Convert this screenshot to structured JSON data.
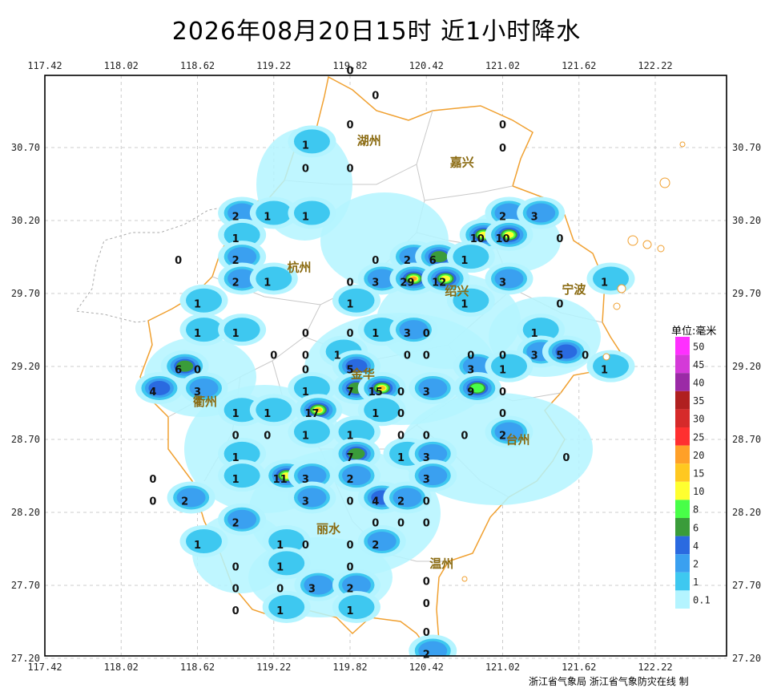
{
  "title": "2026年08月20日15时  近1小时降水",
  "axes": {
    "lon_ticks": [
      "117.42",
      "118.02",
      "118.62",
      "119.22",
      "119.82",
      "120.42",
      "121.02",
      "121.62",
      "122.22"
    ],
    "lat_ticks": [
      "30.70",
      "30.20",
      "29.70",
      "29.20",
      "28.70",
      "28.20",
      "27.70",
      "27.20"
    ]
  },
  "cities": [
    {
      "name": "湖州",
      "lon": 119.97,
      "lat": 30.72
    },
    {
      "name": "嘉兴",
      "lon": 120.7,
      "lat": 30.57
    },
    {
      "name": "杭州",
      "lon": 119.42,
      "lat": 29.85
    },
    {
      "name": "绍兴",
      "lon": 120.66,
      "lat": 29.69
    },
    {
      "name": "宁波",
      "lon": 121.58,
      "lat": 29.7
    },
    {
      "name": "衢州",
      "lon": 118.68,
      "lat": 28.93
    },
    {
      "name": "金华",
      "lon": 119.92,
      "lat": 29.12
    },
    {
      "name": "台州",
      "lon": 121.14,
      "lat": 28.67
    },
    {
      "name": "丽水",
      "lon": 119.65,
      "lat": 28.06
    },
    {
      "name": "温州",
      "lon": 120.54,
      "lat": 27.82
    }
  ],
  "stations": [
    {
      "v": "0",
      "lon": 119.82,
      "lat": 31.23
    },
    {
      "v": "0",
      "lon": 120.02,
      "lat": 31.06
    },
    {
      "v": "0",
      "lon": 119.82,
      "lat": 30.86
    },
    {
      "v": "0",
      "lon": 121.02,
      "lat": 30.86
    },
    {
      "v": "1",
      "lon": 119.47,
      "lat": 30.72
    },
    {
      "v": "0",
      "lon": 121.02,
      "lat": 30.7
    },
    {
      "v": "0",
      "lon": 119.47,
      "lat": 30.56
    },
    {
      "v": "0",
      "lon": 119.82,
      "lat": 30.56
    },
    {
      "v": "2",
      "lon": 118.92,
      "lat": 30.23
    },
    {
      "v": "1",
      "lon": 119.17,
      "lat": 30.23
    },
    {
      "v": "1",
      "lon": 119.47,
      "lat": 30.23
    },
    {
      "v": "2",
      "lon": 121.02,
      "lat": 30.23
    },
    {
      "v": "3",
      "lon": 121.27,
      "lat": 30.23
    },
    {
      "v": "1",
      "lon": 118.92,
      "lat": 30.08
    },
    {
      "v": "10",
      "lon": 120.82,
      "lat": 30.08
    },
    {
      "v": "10",
      "lon": 121.02,
      "lat": 30.08
    },
    {
      "v": "0",
      "lon": 121.47,
      "lat": 30.08
    },
    {
      "v": "0",
      "lon": 118.47,
      "lat": 29.93
    },
    {
      "v": "2",
      "lon": 118.92,
      "lat": 29.93
    },
    {
      "v": "0",
      "lon": 120.02,
      "lat": 29.93
    },
    {
      "v": "2",
      "lon": 120.27,
      "lat": 29.93
    },
    {
      "v": "6",
      "lon": 120.47,
      "lat": 29.93
    },
    {
      "v": "1",
      "lon": 120.72,
      "lat": 29.93
    },
    {
      "v": "2",
      "lon": 118.92,
      "lat": 29.78
    },
    {
      "v": "1",
      "lon": 119.17,
      "lat": 29.78
    },
    {
      "v": "0",
      "lon": 119.82,
      "lat": 29.78
    },
    {
      "v": "3",
      "lon": 120.02,
      "lat": 29.78
    },
    {
      "v": "29",
      "lon": 120.27,
      "lat": 29.78
    },
    {
      "v": "12",
      "lon": 120.52,
      "lat": 29.78
    },
    {
      "v": "3",
      "lon": 121.02,
      "lat": 29.78
    },
    {
      "v": "1",
      "lon": 121.82,
      "lat": 29.78
    },
    {
      "v": "1",
      "lon": 118.62,
      "lat": 29.63
    },
    {
      "v": "1",
      "lon": 119.82,
      "lat": 29.63
    },
    {
      "v": "1",
      "lon": 120.72,
      "lat": 29.63
    },
    {
      "v": "0",
      "lon": 121.47,
      "lat": 29.63
    },
    {
      "v": "1",
      "lon": 118.62,
      "lat": 29.43
    },
    {
      "v": "1",
      "lon": 118.92,
      "lat": 29.43
    },
    {
      "v": "0",
      "lon": 119.47,
      "lat": 29.43
    },
    {
      "v": "0",
      "lon": 119.82,
      "lat": 29.43
    },
    {
      "v": "1",
      "lon": 120.02,
      "lat": 29.43
    },
    {
      "v": "3",
      "lon": 120.27,
      "lat": 29.43
    },
    {
      "v": "0",
      "lon": 120.42,
      "lat": 29.43
    },
    {
      "v": "1",
      "lon": 121.27,
      "lat": 29.43
    },
    {
      "v": "0",
      "lon": 119.22,
      "lat": 29.28
    },
    {
      "v": "0",
      "lon": 119.47,
      "lat": 29.28
    },
    {
      "v": "1",
      "lon": 119.72,
      "lat": 29.28
    },
    {
      "v": "0",
      "lon": 120.27,
      "lat": 29.28
    },
    {
      "v": "0",
      "lon": 120.42,
      "lat": 29.28
    },
    {
      "v": "0",
      "lon": 120.77,
      "lat": 29.28
    },
    {
      "v": "0",
      "lon": 121.02,
      "lat": 29.28
    },
    {
      "v": "3",
      "lon": 121.27,
      "lat": 29.28
    },
    {
      "v": "5",
      "lon": 121.47,
      "lat": 29.28
    },
    {
      "v": "0",
      "lon": 121.67,
      "lat": 29.28
    },
    {
      "v": "6",
      "lon": 118.47,
      "lat": 29.18
    },
    {
      "v": "0",
      "lon": 118.62,
      "lat": 29.18
    },
    {
      "v": "0",
      "lon": 119.47,
      "lat": 29.18
    },
    {
      "v": "5",
      "lon": 119.82,
      "lat": 29.18
    },
    {
      "v": "3",
      "lon": 120.77,
      "lat": 29.18
    },
    {
      "v": "1",
      "lon": 121.02,
      "lat": 29.18
    },
    {
      "v": "1",
      "lon": 121.82,
      "lat": 29.18
    },
    {
      "v": "4",
      "lon": 118.27,
      "lat": 29.03
    },
    {
      "v": "3",
      "lon": 118.62,
      "lat": 29.03
    },
    {
      "v": "1",
      "lon": 119.47,
      "lat": 29.03
    },
    {
      "v": "7",
      "lon": 119.82,
      "lat": 29.03
    },
    {
      "v": "15",
      "lon": 120.02,
      "lat": 29.03
    },
    {
      "v": "0",
      "lon": 120.22,
      "lat": 29.03
    },
    {
      "v": "3",
      "lon": 120.42,
      "lat": 29.03
    },
    {
      "v": "9",
      "lon": 120.77,
      "lat": 29.03
    },
    {
      "v": "0",
      "lon": 121.02,
      "lat": 29.03
    },
    {
      "v": "1",
      "lon": 118.92,
      "lat": 28.88
    },
    {
      "v": "1",
      "lon": 119.17,
      "lat": 28.88
    },
    {
      "v": "17",
      "lon": 119.52,
      "lat": 28.88
    },
    {
      "v": "1",
      "lon": 120.02,
      "lat": 28.88
    },
    {
      "v": "0",
      "lon": 120.22,
      "lat": 28.88
    },
    {
      "v": "0",
      "lon": 121.02,
      "lat": 28.88
    },
    {
      "v": "0",
      "lon": 118.92,
      "lat": 28.73
    },
    {
      "v": "0",
      "lon": 119.17,
      "lat": 28.73
    },
    {
      "v": "1",
      "lon": 119.47,
      "lat": 28.73
    },
    {
      "v": "1",
      "lon": 119.82,
      "lat": 28.73
    },
    {
      "v": "0",
      "lon": 120.22,
      "lat": 28.73
    },
    {
      "v": "0",
      "lon": 120.42,
      "lat": 28.73
    },
    {
      "v": "0",
      "lon": 120.72,
      "lat": 28.73
    },
    {
      "v": "2",
      "lon": 121.02,
      "lat": 28.73
    },
    {
      "v": "1",
      "lon": 118.92,
      "lat": 28.58
    },
    {
      "v": "7",
      "lon": 119.82,
      "lat": 28.58
    },
    {
      "v": "1",
      "lon": 120.22,
      "lat": 28.58
    },
    {
      "v": "3",
      "lon": 120.42,
      "lat": 28.58
    },
    {
      "v": "0",
      "lon": 121.52,
      "lat": 28.58
    },
    {
      "v": "0",
      "lon": 118.27,
      "lat": 28.43
    },
    {
      "v": "1",
      "lon": 118.92,
      "lat": 28.43
    },
    {
      "v": "11",
      "lon": 119.27,
      "lat": 28.43
    },
    {
      "v": "3",
      "lon": 119.47,
      "lat": 28.43
    },
    {
      "v": "2",
      "lon": 119.82,
      "lat": 28.43
    },
    {
      "v": "3",
      "lon": 120.42,
      "lat": 28.43
    },
    {
      "v": "0",
      "lon": 118.27,
      "lat": 28.28
    },
    {
      "v": "2",
      "lon": 118.52,
      "lat": 28.28
    },
    {
      "v": "3",
      "lon": 119.47,
      "lat": 28.28
    },
    {
      "v": "0",
      "lon": 119.82,
      "lat": 28.28
    },
    {
      "v": "4",
      "lon": 120.02,
      "lat": 28.28
    },
    {
      "v": "2",
      "lon": 120.22,
      "lat": 28.28
    },
    {
      "v": "0",
      "lon": 120.42,
      "lat": 28.28
    },
    {
      "v": "2",
      "lon": 118.92,
      "lat": 28.13
    },
    {
      "v": "0",
      "lon": 120.02,
      "lat": 28.13
    },
    {
      "v": "0",
      "lon": 120.22,
      "lat": 28.13
    },
    {
      "v": "0",
      "lon": 120.42,
      "lat": 28.13
    },
    {
      "v": "1",
      "lon": 118.62,
      "lat": 27.98
    },
    {
      "v": "1",
      "lon": 119.27,
      "lat": 27.98
    },
    {
      "v": "0",
      "lon": 119.47,
      "lat": 27.98
    },
    {
      "v": "0",
      "lon": 119.82,
      "lat": 27.98
    },
    {
      "v": "2",
      "lon": 120.02,
      "lat": 27.98
    },
    {
      "v": "0",
      "lon": 118.92,
      "lat": 27.83
    },
    {
      "v": "1",
      "lon": 119.27,
      "lat": 27.83
    },
    {
      "v": "0",
      "lon": 119.82,
      "lat": 27.83
    },
    {
      "v": "0",
      "lon": 120.42,
      "lat": 27.73
    },
    {
      "v": "0",
      "lon": 118.92,
      "lat": 27.68
    },
    {
      "v": "0",
      "lon": 119.27,
      "lat": 27.68
    },
    {
      "v": "3",
      "lon": 119.52,
      "lat": 27.68
    },
    {
      "v": "2",
      "lon": 119.82,
      "lat": 27.68
    },
    {
      "v": "0",
      "lon": 120.42,
      "lat": 27.58
    },
    {
      "v": "0",
      "lon": 118.92,
      "lat": 27.53
    },
    {
      "v": "1",
      "lon": 119.27,
      "lat": 27.53
    },
    {
      "v": "1",
      "lon": 119.82,
      "lat": 27.53
    },
    {
      "v": "0",
      "lon": 120.42,
      "lat": 27.38
    },
    {
      "v": "2",
      "lon": 120.42,
      "lat": 27.23
    }
  ],
  "legend": {
    "title": "单位:毫米",
    "bins": [
      {
        "label": "50",
        "color": "#ff30ff"
      },
      {
        "label": "45",
        "color": "#d43ad8"
      },
      {
        "label": "40",
        "color": "#9b2aa6"
      },
      {
        "label": "35",
        "color": "#b02020"
      },
      {
        "label": "30",
        "color": "#d62a2a"
      },
      {
        "label": "25",
        "color": "#ff3030"
      },
      {
        "label": "20",
        "color": "#ffa028"
      },
      {
        "label": "15",
        "color": "#ffc820"
      },
      {
        "label": "10",
        "color": "#ffff30"
      },
      {
        "label": "8",
        "color": "#48ff48"
      },
      {
        "label": "6",
        "color": "#3a9c3a"
      },
      {
        "label": "4",
        "color": "#2a6ae0"
      },
      {
        "label": "2",
        "color": "#3aa0f0"
      },
      {
        "label": "1",
        "color": "#3ec8f0"
      },
      {
        "label": "0.1",
        "color": "#b4f4ff"
      }
    ]
  },
  "credit": "浙江省气象局 浙江省气象防灾在线 制"
}
